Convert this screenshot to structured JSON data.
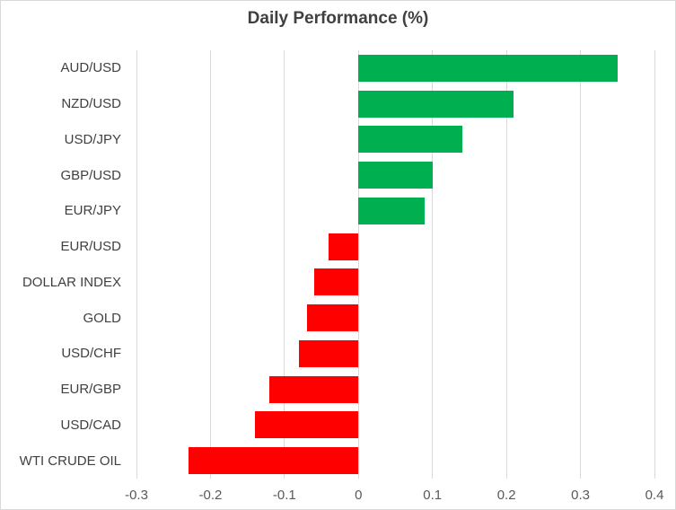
{
  "title": "Daily Performance (%)",
  "colors": {
    "positive_bar": "#00B050",
    "negative_bar": "#FF0000",
    "gridline": "#D9D9D9",
    "border": "#D9D9D9",
    "title_text": "#404040",
    "category_text": "#404040",
    "tick_text": "#595959",
    "background": "#FFFFFF"
  },
  "chart_data": {
    "type": "bar",
    "orientation": "horizontal",
    "title": "Daily Performance (%)",
    "categories": [
      "AUD/USD",
      "NZD/USD",
      "USD/JPY",
      "GBP/USD",
      "EUR/JPY",
      "EUR/USD",
      "DOLLAR INDEX",
      "GOLD",
      "USD/CHF",
      "EUR/GBP",
      "USD/CAD",
      "WTI CRUDE OIL"
    ],
    "values": [
      0.35,
      0.21,
      0.14,
      0.1,
      0.09,
      -0.04,
      -0.06,
      -0.07,
      -0.08,
      -0.12,
      -0.14,
      -0.23
    ],
    "xlabel": "",
    "ylabel": "",
    "xlim": [
      -0.3,
      0.4
    ],
    "xticks": [
      -0.3,
      -0.2,
      -0.1,
      0,
      0.1,
      0.2,
      0.3,
      0.4
    ],
    "xtick_labels": [
      "-0.3",
      "-0.2",
      "-0.1",
      "0",
      "0.1",
      "0.2",
      "0.3",
      "0.4"
    ],
    "grid": true,
    "legend": false,
    "bar_color_rule": "green if value >= 0 else red"
  }
}
